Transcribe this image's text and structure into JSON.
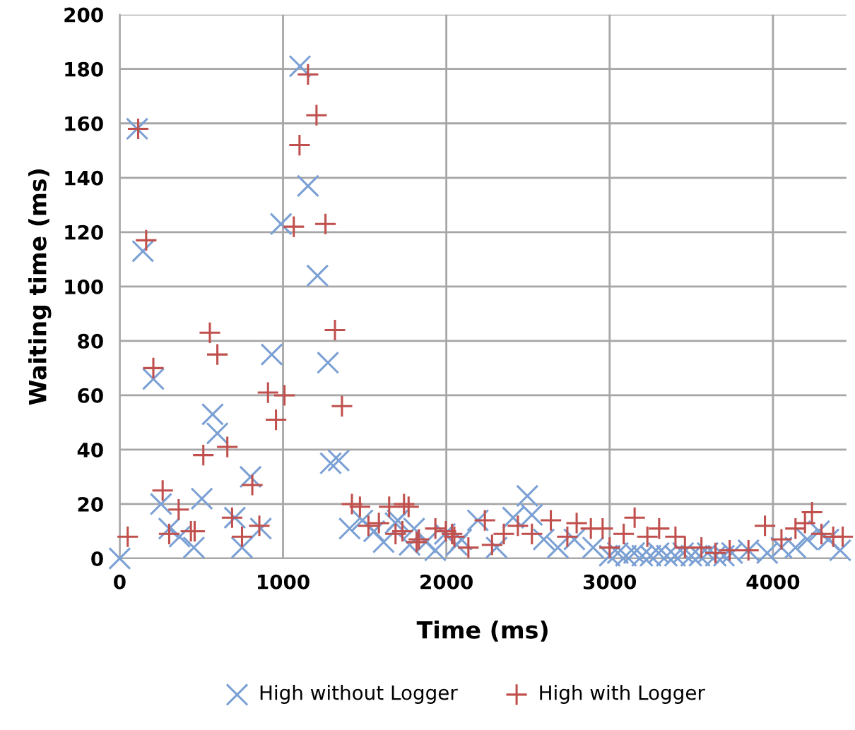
{
  "chart_data": {
    "type": "scatter",
    "xlabel": "Time (ms)",
    "ylabel": "Waiting time (ms)",
    "xlim": [
      0,
      4450
    ],
    "xticks": [
      0,
      1000,
      2000,
      3000,
      4000
    ],
    "ylim": [
      0,
      200
    ],
    "yticks": [
      0,
      20,
      40,
      60,
      80,
      100,
      120,
      140,
      160,
      180,
      200
    ],
    "grid": true,
    "legend": "bottom",
    "series": [
      {
        "name": "High without Logger",
        "color": "#7ba0d4",
        "marker": "cross",
        "x": [
          0,
          107,
          142,
          206,
          253,
          303,
          367,
          454,
          503,
          569,
          598,
          705,
          749,
          801,
          864,
          931,
          988,
          1104,
          1153,
          1211,
          1275,
          1292,
          1341,
          1408,
          1486,
          1558,
          1616,
          1689,
          1702,
          1775,
          1803,
          1876,
          1933,
          1991,
          2064,
          2092,
          2193,
          2308,
          2409,
          2496,
          2524,
          2597,
          2683,
          2784,
          2899,
          3000,
          3050,
          3100,
          3150,
          3200,
          3250,
          3300,
          3350,
          3400,
          3450,
          3500,
          3550,
          3600,
          3650,
          3700,
          3750,
          3850,
          3965,
          4052,
          4138,
          4210,
          4282,
          4340,
          4412
        ],
        "values": [
          0,
          158,
          113,
          66,
          20,
          11,
          8,
          4,
          22,
          53,
          46,
          15,
          4,
          30,
          11,
          75,
          123,
          181,
          137,
          104,
          72,
          35,
          36,
          11,
          14,
          10,
          6,
          13,
          14,
          5,
          11,
          6,
          3,
          9,
          5,
          7,
          14,
          4,
          15,
          23,
          16,
          7,
          4,
          7,
          4,
          1,
          2,
          1,
          2,
          1,
          1,
          2,
          1,
          1,
          2,
          1,
          1,
          2,
          1,
          1,
          2,
          3,
          2,
          4,
          4,
          7,
          10,
          7,
          3
        ]
      },
      {
        "name": "High with Logger",
        "color": "#c0504d",
        "marker": "plus",
        "x": [
          49,
          113,
          162,
          206,
          263,
          303,
          361,
          436,
          459,
          512,
          552,
          598,
          659,
          688,
          749,
          812,
          855,
          908,
          957,
          1009,
          1066,
          1101,
          1153,
          1205,
          1260,
          1318,
          1361,
          1422,
          1471,
          1523,
          1587,
          1650,
          1689,
          1731,
          1741,
          1769,
          1818,
          1832,
          1933,
          1997,
          2035,
          2049,
          2135,
          2236,
          2280,
          2352,
          2438,
          2524,
          2640,
          2741,
          2798,
          2885,
          2957,
          3000,
          3086,
          3153,
          3231,
          3303,
          3403,
          3461,
          3562,
          3648,
          3735,
          3850,
          3951,
          4052,
          4138,
          4196,
          4239,
          4297,
          4369,
          4427
        ],
        "values": [
          8,
          158,
          117,
          70,
          25,
          9,
          18,
          10,
          10,
          38,
          83,
          75,
          41,
          15,
          8,
          27,
          12,
          61,
          51,
          60,
          122,
          152,
          178,
          163,
          123,
          84,
          56,
          20,
          19,
          12,
          13,
          19,
          9,
          10,
          20,
          19,
          6,
          7,
          11,
          10,
          9,
          8,
          4,
          14,
          5,
          9,
          12,
          9,
          14,
          8,
          13,
          11,
          11,
          4,
          9,
          15,
          8,
          11,
          8,
          4,
          4,
          2,
          3,
          3,
          12,
          7,
          11,
          13,
          17,
          9,
          8,
          8
        ]
      }
    ]
  }
}
